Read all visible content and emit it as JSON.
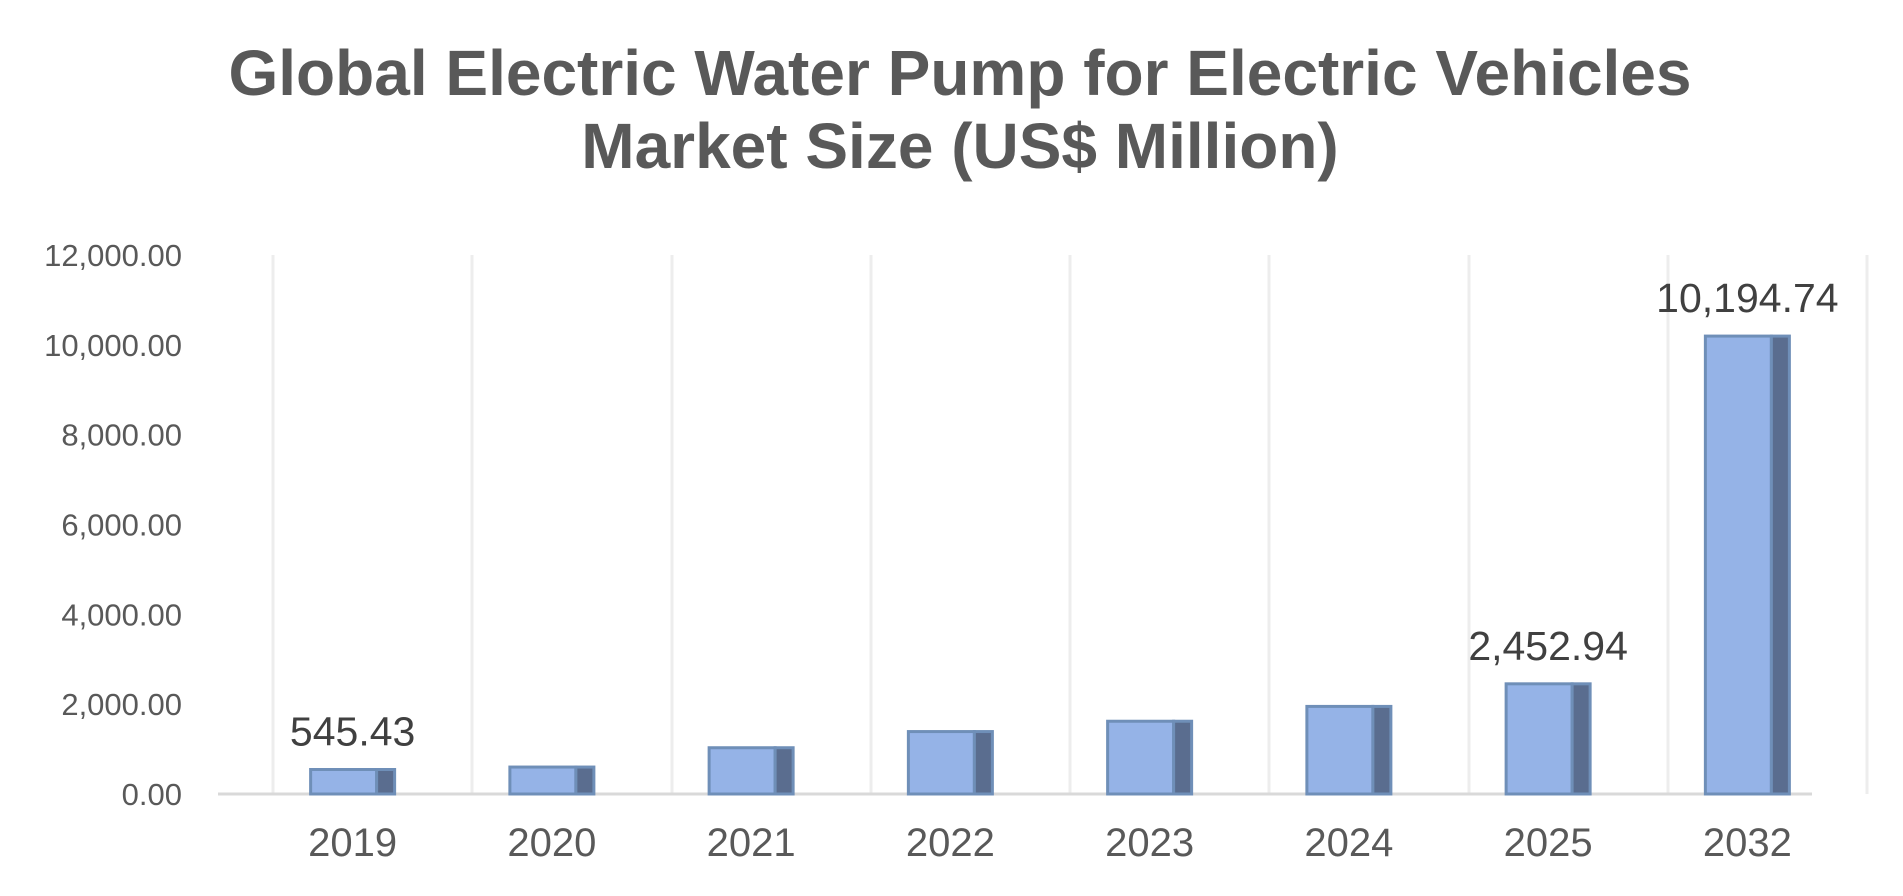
{
  "chart_data": {
    "type": "bar",
    "title": "Global Electric Water Pump for Electric Vehicles Market Size (US$ Million)",
    "title_lines": [
      "Global Electric Water Pump for Electric Vehicles",
      "Market Size (US$ Million)"
    ],
    "xlabel": "",
    "ylabel": "",
    "categories": [
      "2019",
      "2020",
      "2021",
      "2022",
      "2023",
      "2024",
      "2025",
      "2032"
    ],
    "values": [
      545.43,
      600,
      1030,
      1390,
      1620,
      1950,
      2452.94,
      10194.74
    ],
    "data_labels": [
      {
        "index": 0,
        "text": "545.43"
      },
      {
        "index": 6,
        "text": "2,452.94"
      },
      {
        "index": 7,
        "text": "10,194.74"
      }
    ],
    "ylim": [
      0,
      12000
    ],
    "y_ticks": [
      {
        "value": 0,
        "label": "0.00"
      },
      {
        "value": 2000,
        "label": "2,000.00"
      },
      {
        "value": 4000,
        "label": "4,000.00"
      },
      {
        "value": 6000,
        "label": "6,000.00"
      },
      {
        "value": 8000,
        "label": "8,000.00"
      },
      {
        "value": 10000,
        "label": "10,000.00"
      },
      {
        "value": 12000,
        "label": "12,000.00"
      }
    ],
    "grid": "vertical",
    "legend": "none",
    "colors": {
      "bar_front": "#95b3e7",
      "bar_side": "#5a6d8f",
      "bar_outline": "#6f8fb8",
      "gridline": "#ededed",
      "axis_line": "#d9d9d9",
      "title": "#595959",
      "tick_text": "#595959",
      "label_text": "#404040"
    }
  }
}
